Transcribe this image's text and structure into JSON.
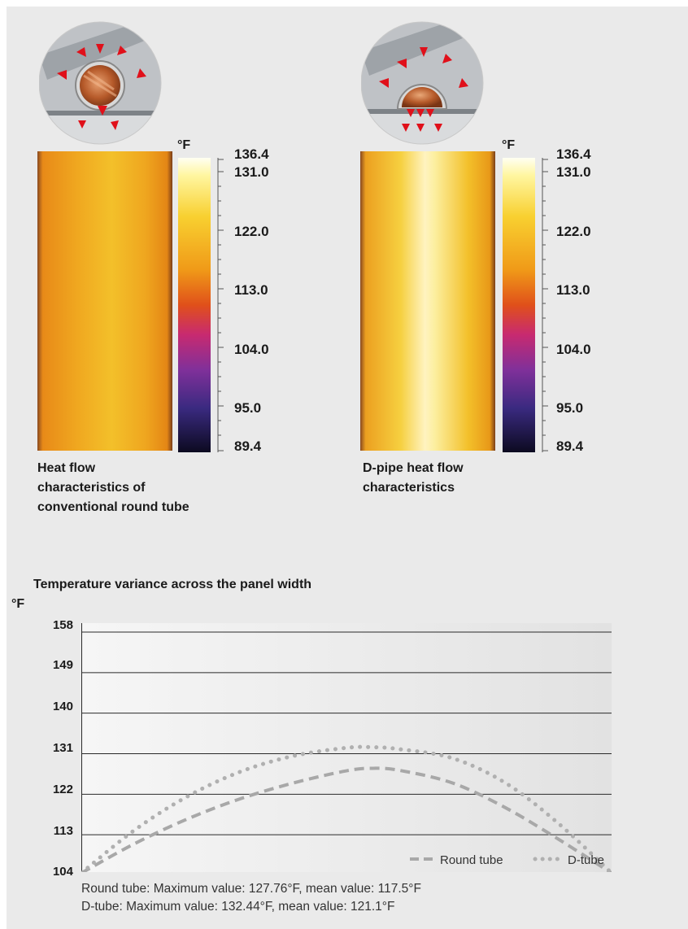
{
  "thermal_panels": [
    {
      "unit": "°F",
      "scale_labels": [
        "136.4",
        "131.0",
        "122.0",
        "113.0",
        "104.0",
        "95.0",
        "89.4"
      ],
      "caption": "Heat flow\ncharacteristics of\nconventional round tube"
    },
    {
      "unit": "°F",
      "scale_labels": [
        "136.4",
        "131.0",
        "122.0",
        "113.0",
        "104.0",
        "95.0",
        "89.4"
      ],
      "caption": "D-pipe heat flow\ncharacteristics"
    }
  ],
  "chart_data": {
    "type": "line",
    "title": "Temperature variance across the panel width",
    "ylabel": "°F",
    "xlabel": "",
    "ylim": [
      104,
      158
    ],
    "yticks": [
      "158",
      "149",
      "140",
      "131",
      "122",
      "113",
      "104"
    ],
    "grid": true,
    "legend_position": "bottom-right",
    "series": [
      {
        "name": "Round tube",
        "style": "dashed",
        "color": "#a8a8a8",
        "x": [
          0,
          0.1,
          0.2,
          0.3,
          0.4,
          0.5,
          0.55,
          0.6,
          0.7,
          0.8,
          0.9,
          1.0
        ],
        "y": [
          104.5,
          111,
          116.5,
          121,
          124.5,
          127.2,
          127.76,
          127.3,
          124.5,
          119,
          112,
          104.5
        ]
      },
      {
        "name": "D-tube",
        "style": "dotted",
        "color": "#b0b0b0",
        "x": [
          0,
          0.1,
          0.2,
          0.3,
          0.4,
          0.5,
          0.55,
          0.6,
          0.7,
          0.8,
          0.9,
          1.0
        ],
        "y": [
          104.5,
          114,
          121.5,
          127,
          130.5,
          132.3,
          132.44,
          132,
          130,
          124.5,
          115.5,
          104.5
        ]
      }
    ],
    "notes": [
      "Round tube: Maximum value: 127.76°F, mean value: 117.5°F",
      "D-tube: Maximum value: 132.44°F, mean value: 121.1°F"
    ]
  }
}
